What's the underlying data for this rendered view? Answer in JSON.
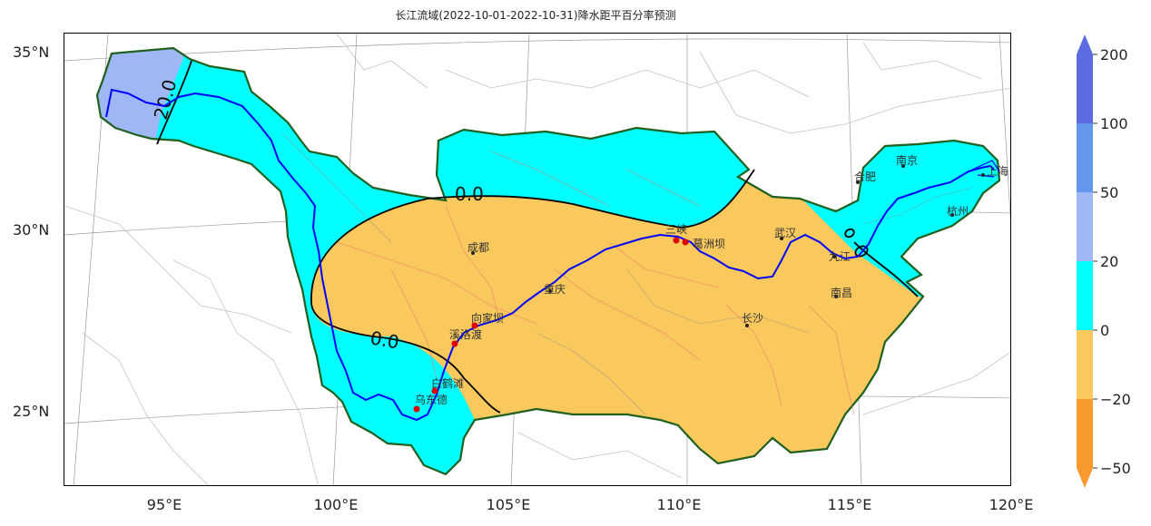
{
  "title": "长江流域(2022-10-01-2022-10-31)降水距平百分率预测",
  "axes": {
    "lat_labels": [
      "35°N",
      "30°N",
      "25°N"
    ],
    "lon_labels": [
      "95°E",
      "100°E",
      "105°E",
      "110°E",
      "115°E",
      "120°E"
    ]
  },
  "colors": {
    "cyan": "#00ffff",
    "orange": "#f9c95e",
    "lightblue": "#9fb8f5",
    "river": "#0000ff",
    "boundary": "#1f5f1f"
  },
  "colorbar": {
    "ticks": [
      "200",
      "100",
      "50",
      "20",
      "0",
      "−20",
      "−50"
    ],
    "colors": [
      "#5c6be0",
      "#6596ee",
      "#9fb8f5",
      "#00ffff",
      "#f9c95e",
      "#f89a2e"
    ]
  },
  "contours": [
    {
      "label": "20.0"
    },
    {
      "label": "0.0"
    },
    {
      "label": "0.0"
    }
  ],
  "cities": [
    {
      "name": "成都",
      "station": false
    },
    {
      "name": "重庆",
      "station": false
    },
    {
      "name": "向家坝",
      "station": true
    },
    {
      "name": "溪洛渡",
      "station": true
    },
    {
      "name": "白鹤滩",
      "station": true
    },
    {
      "name": "乌东德",
      "station": true
    },
    {
      "name": "三峡",
      "station": true
    },
    {
      "name": "葛洲坝",
      "station": true
    },
    {
      "name": "武汉",
      "station": false
    },
    {
      "name": "长沙",
      "station": false
    },
    {
      "name": "南昌",
      "station": false
    },
    {
      "name": "九江",
      "station": false
    },
    {
      "name": "合肥",
      "station": false
    },
    {
      "name": "南京",
      "station": false
    },
    {
      "name": "杭州",
      "station": false
    },
    {
      "name": "上海",
      "station": false
    }
  ]
}
